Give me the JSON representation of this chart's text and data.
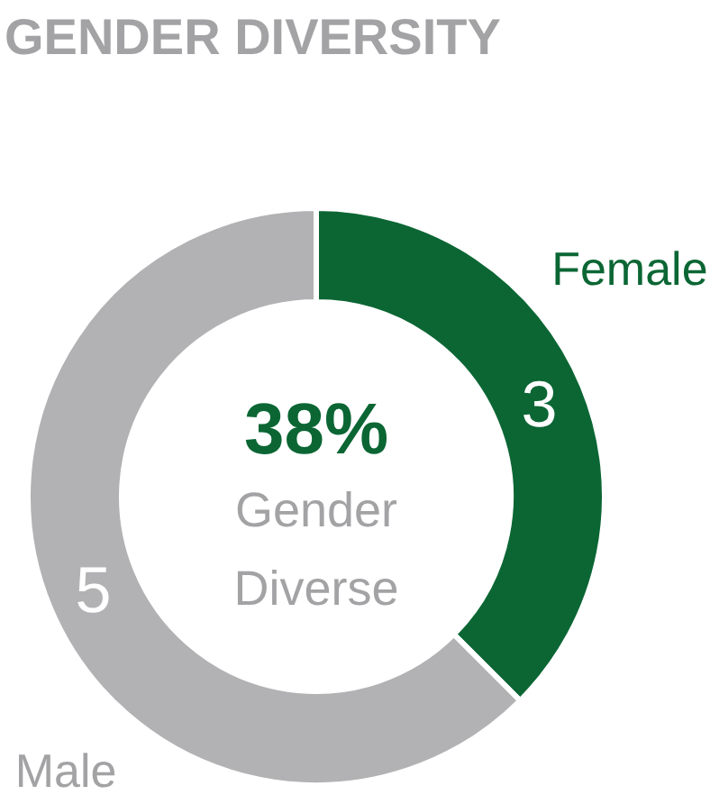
{
  "chart_data": {
    "type": "donut",
    "title": "GENDER DIVERSITY",
    "categories": [
      "Female",
      "Male"
    ],
    "values": [
      3,
      5
    ],
    "colors": [
      "#0b6634",
      "#b2b2b4"
    ],
    "data_labels": true,
    "annotations": [
      "38%",
      "Gender Diverse"
    ]
  }
}
